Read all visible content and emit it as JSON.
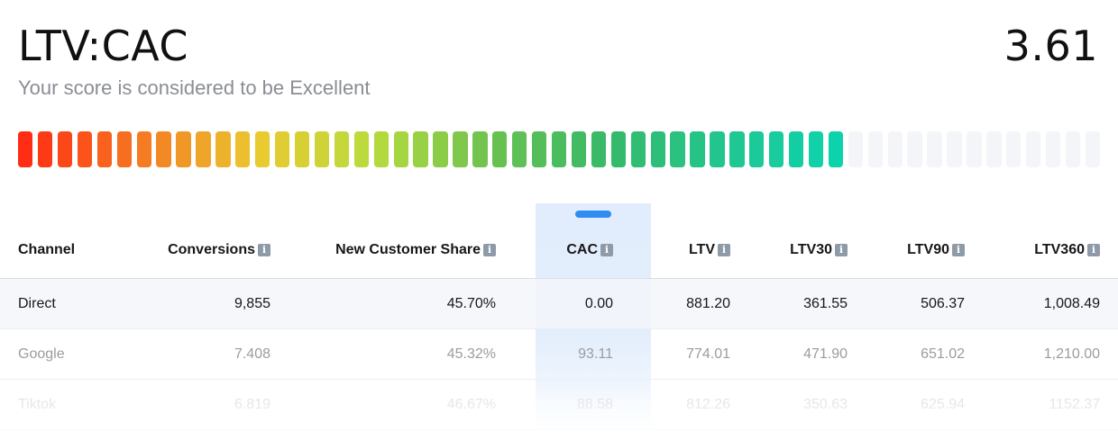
{
  "header": {
    "title": "LTV:CAC",
    "subtitle": "Your score is considered to be Excellent",
    "score": "3.61"
  },
  "meter": {
    "total_segments": 55,
    "filled_segments": 42,
    "filled_fraction": 0.764,
    "gradient_stops": [
      "#ff2d14",
      "#f57a22",
      "#eac930",
      "#b8dc3e",
      "#6cc24f",
      "#37b968",
      "#22c58f",
      "#0dd3ad"
    ],
    "empty_color": "#f3f5f8"
  },
  "table": {
    "headers": {
      "channel": "Channel",
      "conversions": "Conversions",
      "new_customer_share": "New Customer Share",
      "cac": "CAC",
      "ltv": "LTV",
      "ltv30": "LTV30",
      "ltv90": "LTV90",
      "ltv360": "LTV360"
    },
    "info_glyph": "i",
    "selected_column": "CAC",
    "rows": [
      {
        "channel": "Direct",
        "conversions": "9,855",
        "new_customer_share": "45.70%",
        "cac": "0.00",
        "ltv": "881.20",
        "ltv30": "361.55",
        "ltv90": "506.37",
        "ltv360": "1,008.49"
      },
      {
        "channel": "Google",
        "conversions": "7.408",
        "new_customer_share": "45.32%",
        "cac": "93.11",
        "ltv": "774.01",
        "ltv30": "471.90",
        "ltv90": "651.02",
        "ltv360": "1,210.00"
      },
      {
        "channel": "Tiktok",
        "conversions": "6.819",
        "new_customer_share": "46.67%",
        "cac": "88.58",
        "ltv": "812.26",
        "ltv30": "350.63",
        "ltv90": "625.94",
        "ltv360": "1152.37"
      }
    ]
  },
  "colors": {
    "accent": "#2f8cf2",
    "highlight_column": "#e1edfc",
    "muted_text": "#8a8d93",
    "info_icon": "#8f9aa8"
  }
}
